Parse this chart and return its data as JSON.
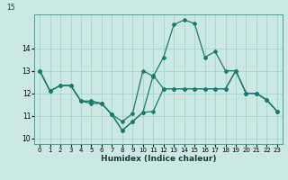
{
  "xlabel": "Humidex (Indice chaleur)",
  "bg_color": "#cce8e5",
  "line_color": "#1a7a6e",
  "grid_color": "#9ecfca",
  "xlim": [
    -0.5,
    23.5
  ],
  "ylim": [
    9.75,
    15.5
  ],
  "yticks": [
    10,
    11,
    12,
    13,
    14
  ],
  "xticks": [
    0,
    1,
    2,
    3,
    4,
    5,
    6,
    7,
    8,
    9,
    10,
    11,
    12,
    13,
    14,
    15,
    16,
    17,
    18,
    19,
    20,
    21,
    22,
    23
  ],
  "line1_x": [
    0,
    1,
    2,
    3,
    4,
    5,
    6,
    7,
    8,
    9,
    10,
    11,
    12,
    13,
    14,
    15,
    16,
    17,
    18,
    19,
    20,
    21,
    22,
    23
  ],
  "line1_y": [
    13.0,
    12.1,
    12.35,
    12.35,
    11.65,
    11.55,
    11.55,
    11.05,
    10.35,
    10.75,
    11.15,
    11.2,
    12.2,
    12.2,
    12.2,
    12.2,
    12.2,
    12.2,
    12.2,
    13.0,
    12.0,
    12.0,
    11.7,
    11.2
  ],
  "line2_x": [
    0,
    1,
    2,
    3,
    4,
    5,
    6,
    7,
    8,
    9,
    10,
    11,
    12,
    13,
    14,
    15,
    16,
    17,
    18,
    19,
    20,
    21,
    22,
    23
  ],
  "line2_y": [
    13.0,
    12.1,
    12.35,
    12.35,
    11.65,
    11.65,
    11.55,
    11.05,
    10.75,
    11.1,
    13.0,
    12.75,
    13.6,
    15.05,
    15.25,
    15.1,
    13.6,
    13.85,
    13.0,
    13.0,
    12.0,
    12.0,
    11.7,
    11.2
  ],
  "line3_x": [
    0,
    1,
    2,
    3,
    4,
    5,
    6,
    7,
    8,
    9,
    10,
    11,
    12,
    13,
    14,
    15,
    16,
    17,
    18,
    19,
    20,
    21,
    22,
    23
  ],
  "line3_y": [
    13.0,
    12.1,
    12.35,
    12.35,
    11.65,
    11.65,
    11.55,
    11.05,
    10.35,
    10.75,
    11.15,
    12.8,
    12.2,
    12.2,
    12.2,
    12.2,
    12.2,
    12.2,
    12.2,
    13.0,
    12.0,
    12.0,
    11.7,
    11.2
  ]
}
